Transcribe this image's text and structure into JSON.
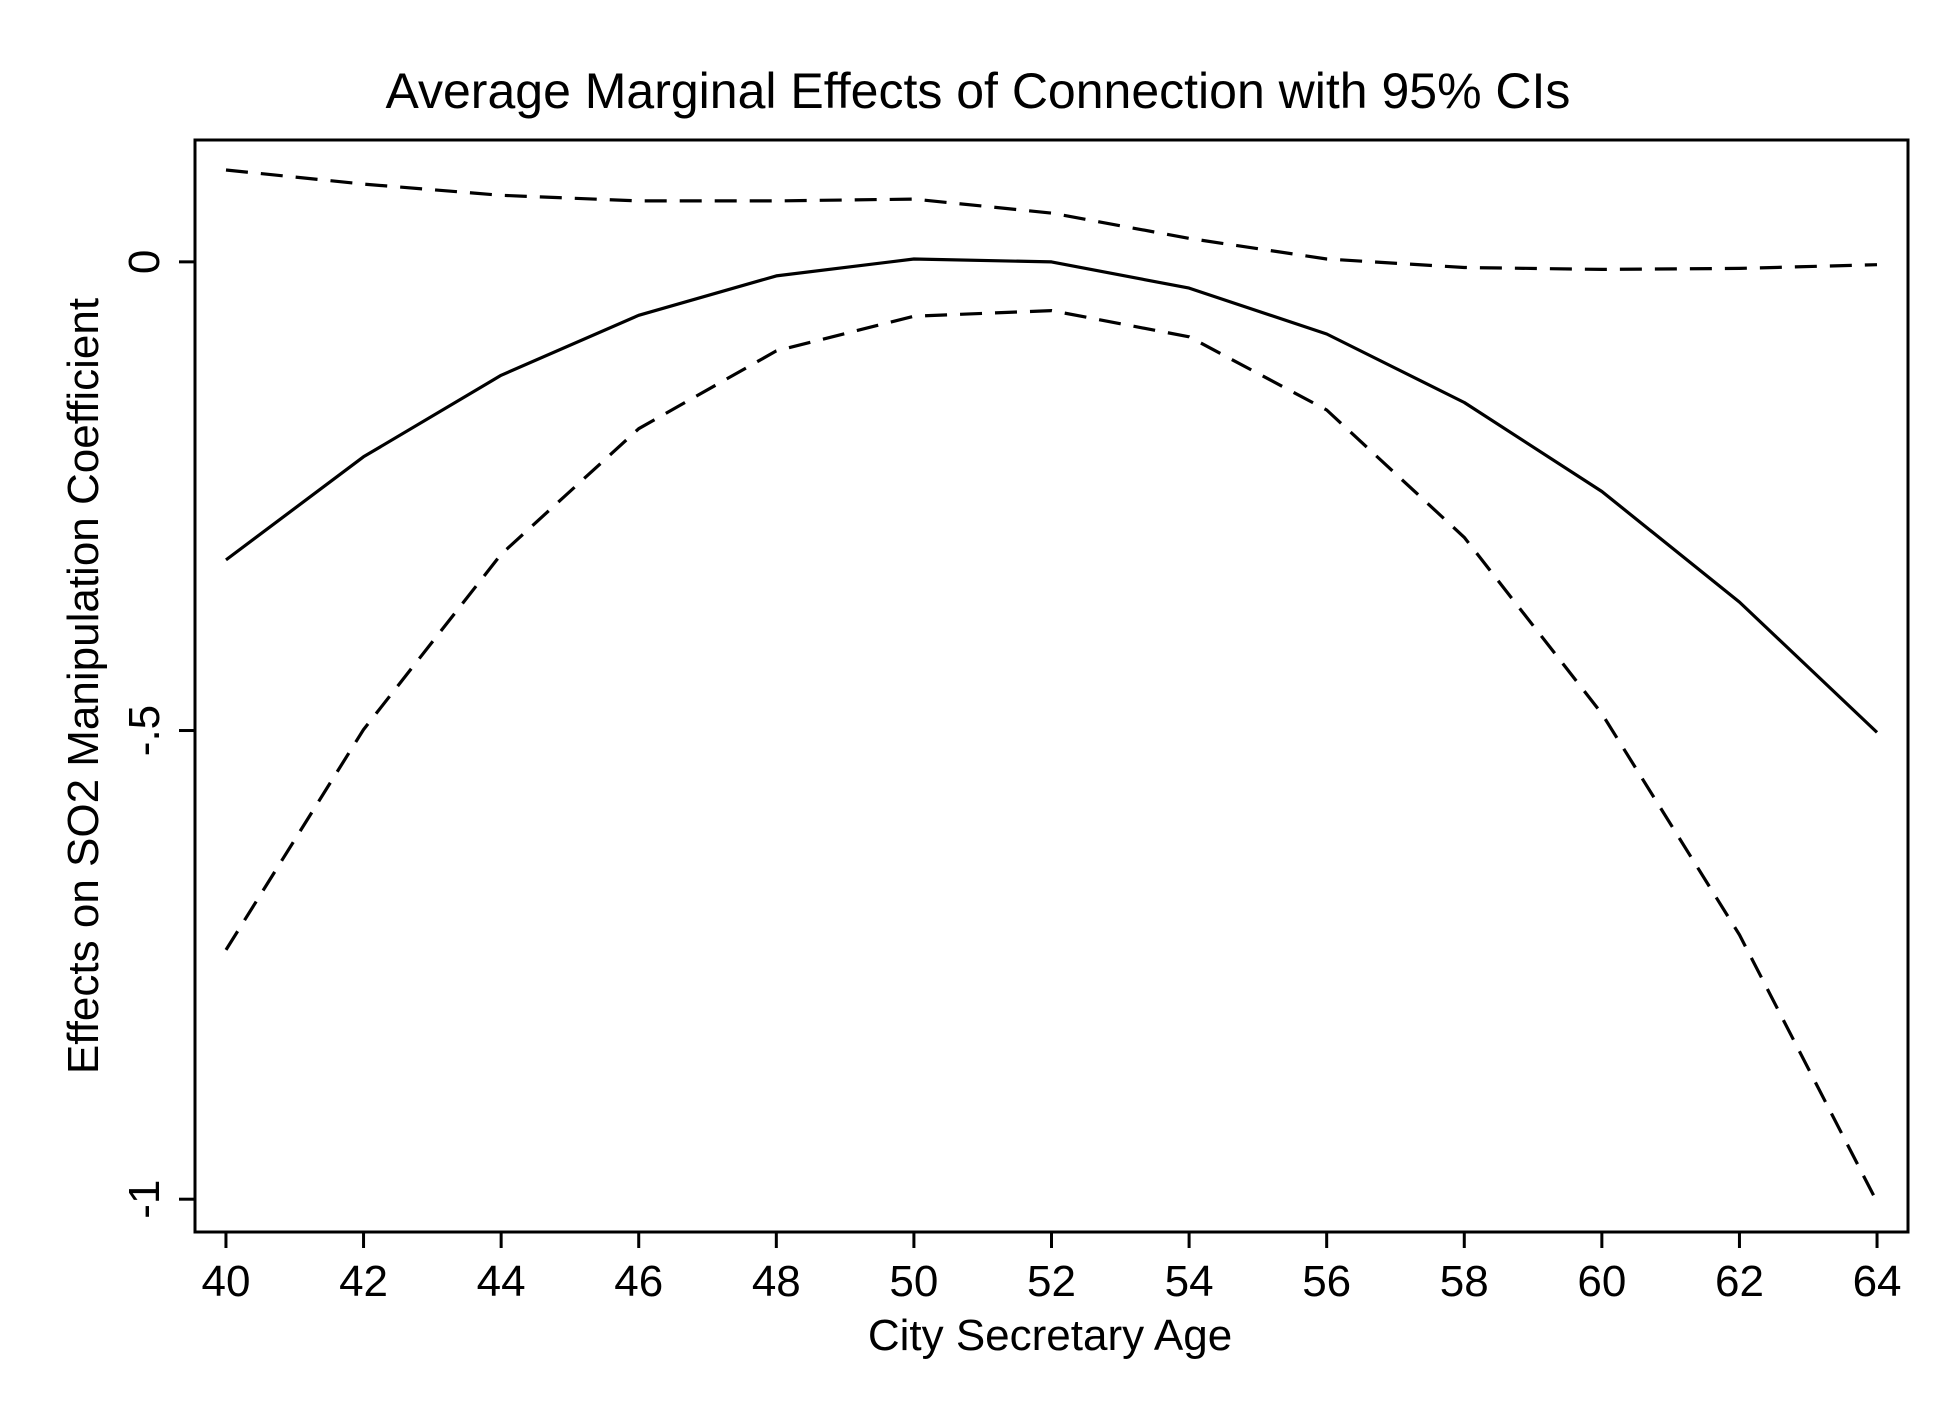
{
  "chart_data": {
    "type": "line",
    "title": "Average Marginal Effects of Connection with 95% CIs",
    "xlabel": "City Secretary Age",
    "ylabel": "Effects on SO2 Manipulation Coefficient",
    "x": [
      40,
      42,
      44,
      46,
      48,
      50,
      52,
      54,
      56,
      58,
      60,
      62,
      64
    ],
    "series": [
      {
        "style": "solid",
        "values": [
          -0.318,
          -0.208,
          -0.121,
          -0.057,
          -0.015,
          0.003,
          0.0,
          -0.028,
          -0.077,
          -0.15,
          -0.245,
          -0.363,
          -0.502
        ]
      },
      {
        "style": "dashed",
        "values": [
          0.098,
          0.083,
          0.071,
          0.065,
          0.065,
          0.067,
          0.052,
          0.025,
          0.003,
          -0.006,
          -0.008,
          -0.007,
          -0.003
        ]
      },
      {
        "style": "dashed",
        "values": [
          -0.734,
          -0.499,
          -0.312,
          -0.178,
          -0.095,
          -0.058,
          -0.052,
          -0.08,
          -0.158,
          -0.294,
          -0.482,
          -0.718,
          -1.003
        ]
      }
    ],
    "xticks": [
      40,
      42,
      44,
      46,
      48,
      50,
      52,
      54,
      56,
      58,
      60,
      62,
      64
    ],
    "xtick_labels": [
      "40",
      "42",
      "44",
      "46",
      "48",
      "50",
      "52",
      "54",
      "56",
      "58",
      "60",
      "62",
      "64"
    ],
    "yticks": [
      0,
      -0.5,
      -1
    ],
    "ytick_labels": [
      "0",
      "-.5",
      "-1"
    ],
    "xlim": [
      39.55,
      64.45
    ],
    "ylim": [
      -1.035,
      0.13
    ],
    "grid": false,
    "legend": "none",
    "line_color": "#000000",
    "background": "#ffffff"
  }
}
